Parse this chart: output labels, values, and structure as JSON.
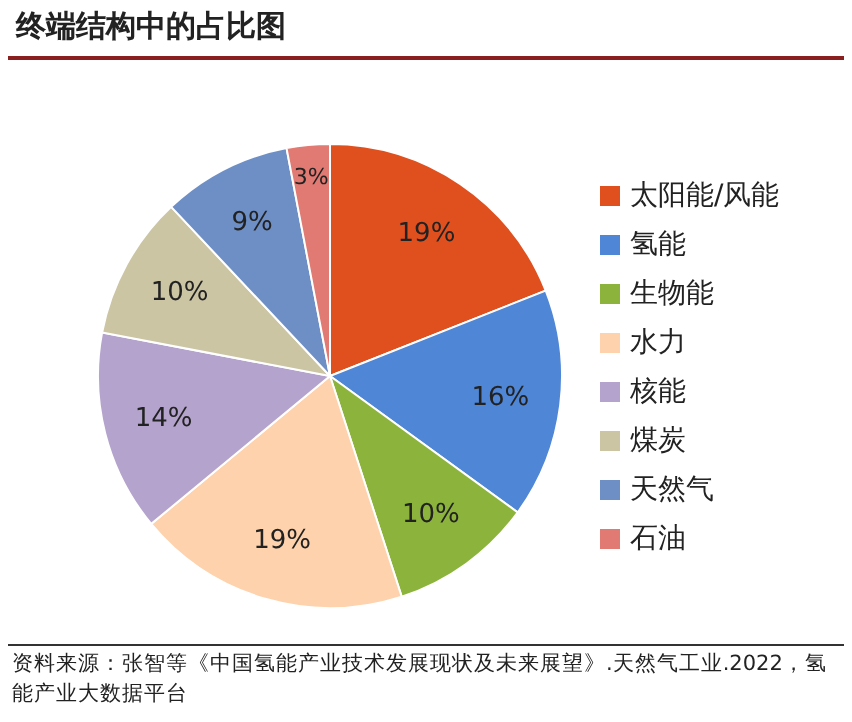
{
  "chart_data": {
    "type": "pie",
    "title": "终端结构中的占比图",
    "categories": [
      "太阳能/风能",
      "氢能",
      "生物能",
      "水力",
      "核能",
      "煤炭",
      "天然气",
      "石油"
    ],
    "values": [
      19,
      16,
      10,
      19,
      14,
      10,
      9,
      3
    ],
    "colors": [
      "#e0501f",
      "#4f86d6",
      "#8cb43c",
      "#fdd2ac",
      "#b4a3cc",
      "#cbc5a4",
      "#6d8fc6",
      "#e07a72"
    ],
    "value_labels": [
      "19%",
      "16%",
      "10%",
      "19%",
      "14%",
      "10%",
      "9%",
      "3%"
    ],
    "legend": "right",
    "annotations": [
      "资料来源：张智等《中国氢能产业技术发展现状及未来展望》.天然气工业.2022，氢能产业大数据平台"
    ]
  }
}
